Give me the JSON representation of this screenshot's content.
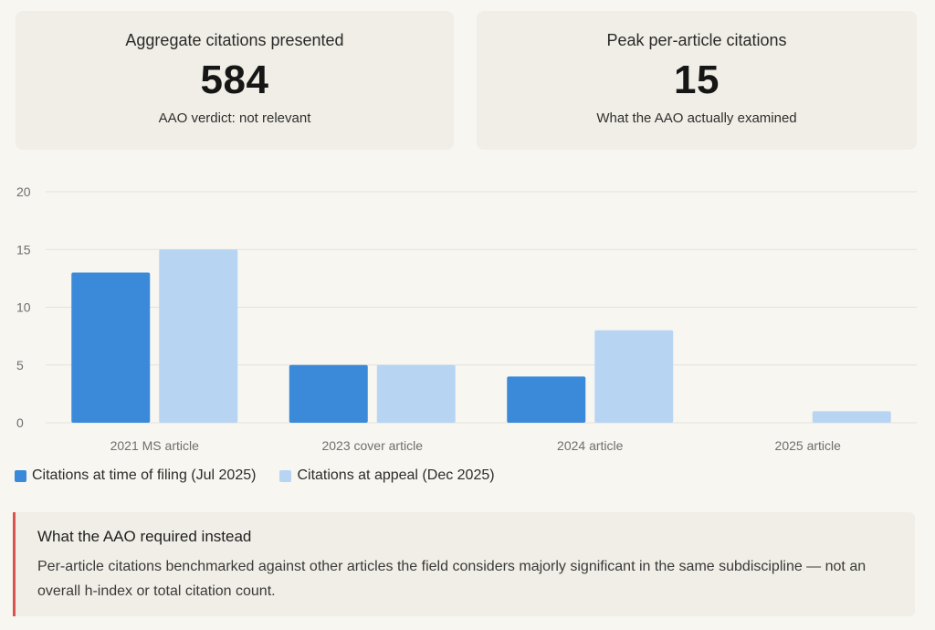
{
  "cards": [
    {
      "title": "Aggregate citations presented",
      "value": "584",
      "subtitle": "AAO verdict: not relevant"
    },
    {
      "title": "Peak per-article citations",
      "value": "15",
      "subtitle": "What the AAO actually examined"
    }
  ],
  "chart_data": {
    "type": "bar",
    "title": "",
    "xlabel": "",
    "ylabel": "",
    "categories": [
      "2021 MS article",
      "2023 cover article",
      "2024 article",
      "2025 article"
    ],
    "series": [
      {
        "name": "Citations at time of filing (Jul 2025)",
        "values": [
          13,
          5,
          4,
          0
        ],
        "color": "#3b8ad9"
      },
      {
        "name": "Citations at appeal (Dec 2025)",
        "values": [
          15,
          5,
          8,
          1
        ],
        "color": "#b7d5f3"
      }
    ],
    "ylim": [
      0,
      20
    ],
    "yticks": [
      0,
      5,
      10,
      15,
      20
    ],
    "grid": true,
    "legend_position": "bottom-left"
  },
  "callout": {
    "title": "What the AAO required instead",
    "text": "Per-article citations benchmarked against other articles the field considers majorly significant in the same subdiscipline — not an overall h-index or total citation count.",
    "border_color": "#d9534f"
  }
}
